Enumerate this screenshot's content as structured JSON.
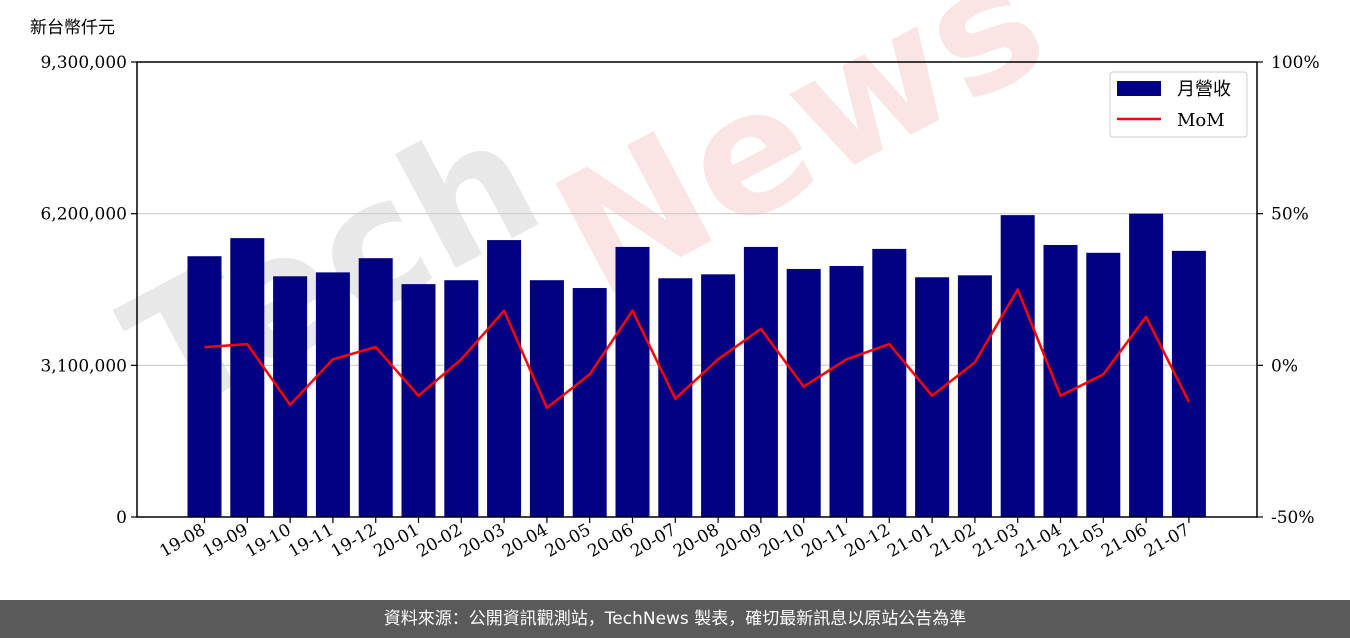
{
  "watermark": {
    "text_a": "Tech",
    "text_b": "News"
  },
  "footer": {
    "text": "資料來源：公開資訊觀測站，TechNews 製表，確切最新訊息以原站公告為準"
  },
  "chart_data": {
    "type": "bar+line",
    "unit_label": "新台幣仟元",
    "categories": [
      "19-08",
      "19-09",
      "19-10",
      "19-11",
      "19-12",
      "20-01",
      "20-02",
      "20-03",
      "20-04",
      "20-05",
      "20-06",
      "20-07",
      "20-08",
      "20-09",
      "20-10",
      "20-11",
      "20-12",
      "21-01",
      "21-02",
      "21-03",
      "21-04",
      "21-05",
      "21-06",
      "21-07"
    ],
    "series": [
      {
        "name": "月營收",
        "type": "bar",
        "axis": "left",
        "color": "#000080",
        "values": [
          5330000,
          5700000,
          4920000,
          5000000,
          5290000,
          4760000,
          4840000,
          5660000,
          4840000,
          4680000,
          5520000,
          4880000,
          4960000,
          5520000,
          5070000,
          5130000,
          5480000,
          4900000,
          4940000,
          6170000,
          5560000,
          5400000,
          6200000,
          5440000
        ]
      },
      {
        "name": "MoM",
        "type": "line",
        "axis": "right",
        "color": "#ff0000",
        "values": [
          6,
          7,
          -13,
          2,
          6,
          -10,
          2,
          18,
          -14,
          -3,
          18,
          -11,
          2,
          12,
          -7,
          2,
          7,
          -10,
          1,
          25,
          -10,
          -3,
          16,
          -12
        ]
      }
    ],
    "left_axis": {
      "min": 0,
      "max": 9300000,
      "ticks": [
        0,
        3100000,
        6200000,
        9300000
      ],
      "tick_labels": [
        "0",
        "3,100,000",
        "6,200,000",
        "9,300,000"
      ]
    },
    "right_axis": {
      "min": -50,
      "max": 100,
      "ticks": [
        -50,
        0,
        50,
        100
      ],
      "tick_labels": [
        "-50%",
        "0%",
        "50%",
        "100%"
      ]
    },
    "grid": "horizontal",
    "legend_position": "top-right"
  }
}
